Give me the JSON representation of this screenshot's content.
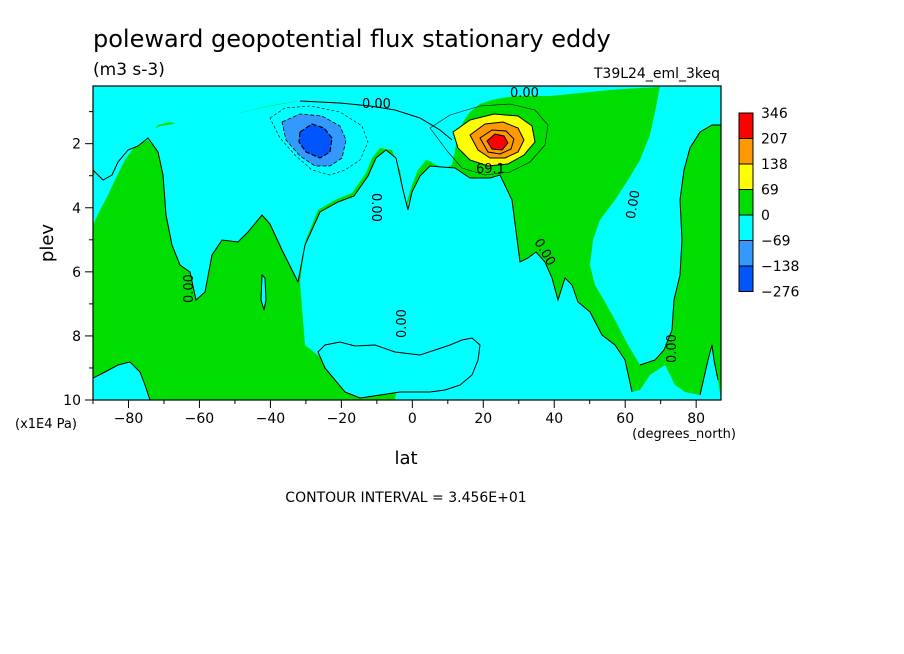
{
  "chart_data": {
    "type": "heatmap",
    "title": "poleward geopotential flux stationary eddy",
    "units": "(m3 s-3)",
    "dataset": "T39L24_eml_3keq",
    "xlabel": "lat",
    "x_units": "(degrees_north)",
    "ylabel": "plev",
    "y_units": "(x1E4 Pa)",
    "xlim": [
      -90,
      87
    ],
    "ylim": [
      10,
      0.2
    ],
    "x_ticks": [
      -80,
      -60,
      -40,
      -20,
      0,
      20,
      40,
      60,
      80
    ],
    "y_ticks": [
      2,
      4,
      6,
      8,
      10
    ],
    "contour_interval_text": "CONTOUR INTERVAL = 3.456E+01",
    "contour_labels": [
      "0.00",
      "0.00",
      "0.00",
      "0.00",
      "0.00",
      "0.00",
      "0.00",
      "0.00",
      "0.00",
      "69.1"
    ],
    "legend": {
      "placement": "right",
      "levels": [
        "346",
        "207",
        "138",
        "69",
        "0",
        "-69",
        "-138",
        "-276"
      ],
      "colors": [
        "#ff0000",
        "#ff9900",
        "#ffff00",
        "#00dd00",
        "#00ffff",
        "#3399ff",
        "#0055ff"
      ]
    },
    "features": [
      {
        "name": "negative-core",
        "lat": -26,
        "plev": 1.9,
        "value": -276
      },
      {
        "name": "positive-core",
        "lat": 26,
        "plev": 1.9,
        "value": 346
      }
    ]
  }
}
